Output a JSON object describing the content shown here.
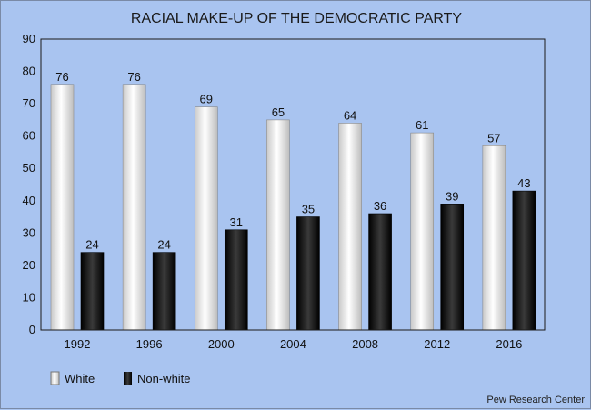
{
  "chart_data": {
    "type": "bar",
    "title": "RACIAL MAKE-UP OF THE DEMOCRATIC PARTY",
    "categories": [
      "1992",
      "1996",
      "2000",
      "2004",
      "2008",
      "2012",
      "2016"
    ],
    "series": [
      {
        "name": "White",
        "values": [
          76,
          76,
          69,
          65,
          64,
          61,
          57
        ],
        "color": "#f2f2f2"
      },
      {
        "name": "Non-white",
        "values": [
          24,
          24,
          31,
          35,
          36,
          39,
          43
        ],
        "color": "#1c1c1c"
      }
    ],
    "ylim": [
      0,
      90
    ],
    "yticks": [
      "0",
      "10",
      "20",
      "30",
      "40",
      "50",
      "60",
      "70",
      "80",
      "90"
    ],
    "xlabel": "",
    "ylabel": "",
    "grid": false,
    "legend": "bottom-left",
    "source": "Pew Research Center",
    "colors": {
      "background": "#a9c4f0",
      "plot_border": "#1a1a1a"
    }
  }
}
